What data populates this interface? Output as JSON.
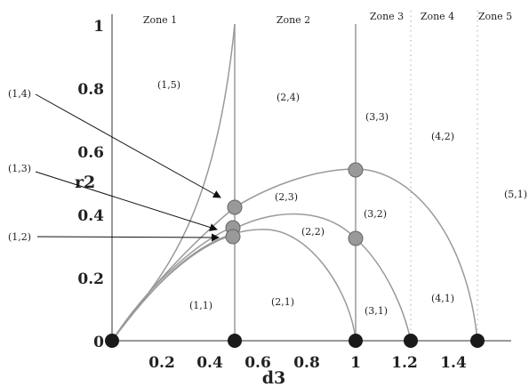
{
  "axes": {
    "x_label": "d3",
    "y_label": "r2",
    "x_ticks": [
      "0.2",
      "0.4",
      "0.6",
      "0.8",
      "1",
      "1.2",
      "1.4"
    ],
    "y_ticks": [
      "0",
      "0.2",
      "0.4",
      "0.6",
      "0.8",
      "1"
    ]
  },
  "zones": [
    "Zone 1",
    "Zone 2",
    "Zone 3",
    "Zone 4",
    "Zone 5"
  ],
  "regions": [
    "(1,5)",
    "(2,4)",
    "(3,3)",
    "(4,2)",
    "(2,3)",
    "(3,2)",
    "(5,1)",
    "(2,2)",
    "(1,1)",
    "(2,1)",
    "(3,1)",
    "(4,1)"
  ],
  "callouts": [
    "(1,4)",
    "(1,3)",
    "(1,2)"
  ],
  "colors": {
    "curve": "#999999",
    "axis": "#777777",
    "grey_marker": "#999999",
    "black_marker": "#1a1a1a"
  }
}
